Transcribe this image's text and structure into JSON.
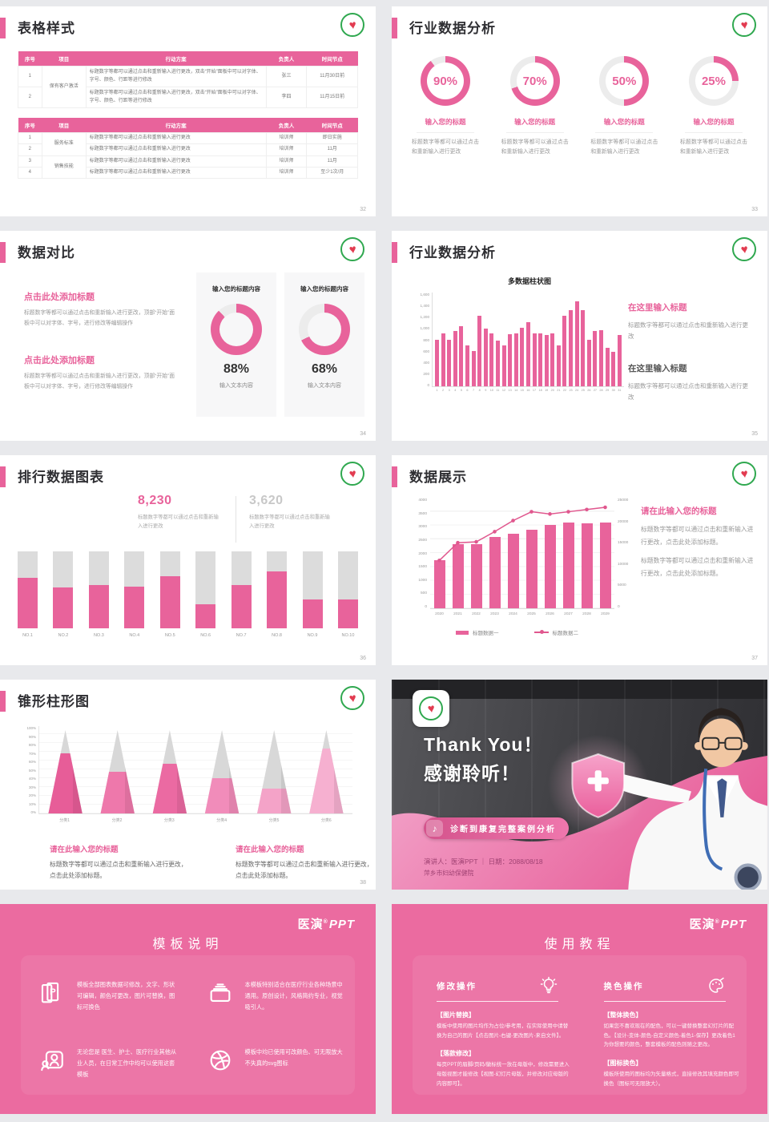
{
  "colors": {
    "pink": "#e8639b",
    "pinkDeep": "#e0578e",
    "track": "#ececec",
    "cone": [
      "#e75d98",
      "#ee78ab",
      "#eb6aa2",
      "#f18cba",
      "#f4a3c8",
      "#f6b0d0"
    ]
  },
  "brand": {
    "name": "医演",
    "reg": "®",
    "suffix": "PPT"
  },
  "chart_data": [
    {
      "id": "industry-donuts",
      "type": "pie",
      "values": [
        90,
        70,
        50,
        25
      ],
      "unit": "%",
      "labels": [
        "输入您的标题",
        "输入您的标题",
        "输入您的标题",
        "输入您的标题"
      ]
    },
    {
      "id": "compare-donuts",
      "type": "pie",
      "values": [
        88,
        68
      ],
      "unit": "%"
    },
    {
      "id": "multi-bar",
      "type": "bar",
      "title": "多数据柱状图",
      "ylim": [
        0,
        1600
      ],
      "yticks": [
        "1,600",
        "1,400",
        "1,200",
        "1,000",
        "800",
        "600",
        "400",
        "200",
        "0"
      ],
      "x_labels": [
        "1",
        "2",
        "3",
        "4",
        "5",
        "6",
        "7",
        "8",
        "9",
        "10",
        "11",
        "12",
        "13",
        "14",
        "15",
        "16",
        "17",
        "18",
        "19",
        "20",
        "21",
        "22",
        "23",
        "24",
        "25",
        "26",
        "27",
        "28",
        "29",
        "30",
        "31"
      ],
      "values": [
        800,
        900,
        800,
        950,
        1020,
        700,
        600,
        1200,
        980,
        900,
        780,
        700,
        890,
        900,
        1000,
        1100,
        900,
        900,
        880,
        900,
        700,
        1200,
        1300,
        1450,
        1300,
        800,
        950,
        960,
        660,
        590,
        870
      ]
    },
    {
      "id": "ranking",
      "type": "bar",
      "max": 100,
      "categories": [
        "NO.1",
        "NO.2",
        "NO.3",
        "NO.4",
        "NO.5",
        "NO.6",
        "NO.7",
        "NO.8",
        "NO.9",
        "NO.10"
      ],
      "values_percent": [
        66,
        53,
        56,
        54,
        68,
        31,
        56,
        74,
        38,
        38
      ]
    },
    {
      "id": "combo",
      "type": "bar+line",
      "categories": [
        "2020",
        "2021",
        "2022",
        "2023",
        "2024",
        "2025",
        "2026",
        "2027",
        "2028",
        "2029"
      ],
      "ylim_left": [
        0,
        4000
      ],
      "ylim_right": [
        0,
        25000
      ],
      "yticks_left": [
        "4000",
        "3500",
        "3000",
        "2500",
        "2000",
        "1500",
        "1000",
        "500",
        "0"
      ],
      "yticks_right": [
        "25000",
        "20000",
        "15000",
        "10000",
        "5000",
        "0"
      ],
      "series": [
        {
          "name": "标题数据一",
          "type": "bar",
          "axis": "left",
          "values": [
            1750,
            2350,
            2330,
            2600,
            2730,
            2870,
            3030,
            3120,
            3100,
            3130
          ]
        },
        {
          "name": "标题数据二",
          "type": "line",
          "axis": "right",
          "values": [
            11000,
            15000,
            15200,
            17500,
            20000,
            22000,
            21500,
            22000,
            22500,
            23000
          ]
        }
      ]
    },
    {
      "id": "cone",
      "type": "bar",
      "max": 100,
      "categories": [
        "分类1",
        "分类2",
        "分类3",
        "分类4",
        "分类5",
        "分类6"
      ],
      "values_percent": [
        72,
        50,
        60,
        42,
        30,
        78
      ],
      "yticks": [
        "100%",
        "90%",
        "80%",
        "70%",
        "60%",
        "50%",
        "40%",
        "30%",
        "20%",
        "10%",
        "0%"
      ]
    }
  ],
  "slides": {
    "s32": {
      "title": "表格样式",
      "page": "32",
      "headers": [
        "序号",
        "项目",
        "行动方案",
        "负责人",
        "时间节点"
      ],
      "t1r1": {
        "no": "1",
        "project": "保有客户激活",
        "action": "标题数字等都可以通过点击和重新输入进行更改，双击“开始”面板中可以对字体、字号、颜色、行距等进行修改",
        "owner": "张三",
        "time": "11月30日前"
      },
      "t1r2": {
        "no": "2",
        "action": "标题数字等都可以通过点击和重新输入进行更改，双击“开始”面板中可以对字体、字号、颜色、行距等进行修改",
        "owner": "李四",
        "time": "11月15日前"
      },
      "t2r1": {
        "no": "1",
        "project": "服务标准",
        "action": "标题数字等都可以通过点击和重新输入进行更改",
        "owner": "培训师",
        "time": "即日实施"
      },
      "t2r2": {
        "no": "2",
        "action": "标题数字等都可以通过点击和重新输入进行更改",
        "owner": "培训师",
        "time": "11月"
      },
      "t2r3": {
        "no": "3",
        "project": "销售技能",
        "action": "标题数字等都可以通过点击和重新输入进行更改",
        "owner": "培训师",
        "time": "11月"
      },
      "t2r4": {
        "no": "4",
        "action": "标题数字等都可以通过点击和重新输入进行更改",
        "owner": "培训师",
        "time": "至少1次/月"
      }
    },
    "s33": {
      "title": "行业数据分析",
      "page": "33",
      "items": [
        {
          "pct": "90%",
          "title": "输入您的标题",
          "body": "标题数字等都可以通过点击和重新输入进行更改"
        },
        {
          "pct": "70%",
          "title": "输入您的标题",
          "body": "标题数字等都可以通过点击和重新输入进行更改"
        },
        {
          "pct": "50%",
          "title": "输入您的标题",
          "body": "标题数字等都可以通过点击和重新输入进行更改"
        },
        {
          "pct": "25%",
          "title": "输入您的标题",
          "body": "标题数字等都可以通过点击和重新输入进行更改"
        }
      ]
    },
    "s34": {
      "title": "数据对比",
      "page": "34",
      "blocks": [
        {
          "title": "点击此处添加标题",
          "body": "标题数字等都可以通过点击和重新输入进行更改，顶部“开始”面板中可以对字体、字号，进行修改等编辑操作"
        },
        {
          "title": "点击此处添加标题",
          "body": "标题数字等都可以通过点击和重新输入进行更改，顶部“开始”面板中可以对字体、字号，进行修改等编辑操作"
        }
      ],
      "cards": [
        {
          "title": "输入您的标题内容",
          "pct": "88%",
          "sub": "输入文本内容"
        },
        {
          "title": "输入您的标题内容",
          "pct": "68%",
          "sub": "输入文本内容"
        }
      ]
    },
    "s35": {
      "title": "行业数据分析",
      "page": "35",
      "chart_title": "多数据柱状图",
      "r1_title": "在这里输入标题",
      "r1_body": "标题数字等都可以通过点击和重新输入进行更改",
      "r2_title": "在这里输入标题",
      "r2_body": "标题数字等都可以通过点击和重新输入进行更改"
    },
    "s36": {
      "title": "排行数据图表",
      "page": "36",
      "stat1": "8,230",
      "stat1_cap": "标题数字等都可以通过点击和重新输入进行更改",
      "stat2": "3,620",
      "stat2_cap": "标题数字等都可以通过点击和重新输入进行更改"
    },
    "s37": {
      "title": "数据展示",
      "page": "37",
      "r_title": "请在此输入您的标题",
      "r_body1": "标题数字等都可以通过点击和重新输入进行更改，点击此处添加标题。",
      "r_body2": "标题数字等都可以通过点击和重新输入进行更改，点击此处添加标题。"
    },
    "s38": {
      "title": "锥形柱形图",
      "page": "38",
      "blocks": [
        {
          "title": "请在此输入您的标题",
          "body": "标题数字等都可以通过点击和重新输入进行更改，点击此处添加标题。"
        },
        {
          "title": "请在此输入您的标题",
          "body": "标题数字等都可以通过点击和重新输入进行更改，点击此处添加标题。"
        }
      ]
    },
    "thanks": {
      "title1": "Thank You！",
      "title2": "感谢聆听！",
      "badge": "诊断到康复完整案例分析",
      "badge_icon": "♪",
      "foot1": "演讲人：医演PPT ｜ 日期：2088/08/18",
      "foot2": "萍乡市妇幼保健院"
    },
    "s39": {
      "title": "模板说明",
      "items": [
        "模板全部图表数据可修改，文字、形状可编辑，颜色可更改，图片可替换，图标可换色",
        "本模板特别适合在医疗行业各种场景中通用。原创设计，风格简约专业，视觉吸引人。",
        "无论您是 医生、护士、医疗行业其他从业人员，在日常工作中均可以使用这套模板",
        "模板中均已使用可改颜色、可无限放大不失真的svg图标"
      ]
    },
    "s40": {
      "title": "使用教程",
      "left_head": "修改操作",
      "right_head": "换色操作",
      "l1t": "【图片替换】",
      "l1b": "模板中使用的图片均作为占位/参考用，在实际使用中请替换为自己的图片【点击图片-右键-更改图片-来自文件】。",
      "l2t": "【落款修改】",
      "l2b": "每页PPT的眉脚/页码/徽标统一放在母版中，修改需要进入母版视图才能修改【视图-幻灯片母版，并修改对应母版的内容即可】。",
      "r1t": "【整体换色】",
      "r1b": "如果您不喜欢现在的配色，可以一键替换整套幻灯片的配色。【设计-变体-颜色-自定义颜色-着色1-保存】更改着色1为你想要的颜色，整套模板的配色则随之更改。",
      "r2t": "【图标换色】",
      "r2b": "模板所使用的图标均为矢量格式，直接修改其填充颜色即可换色（图标可无限放大）。"
    }
  }
}
